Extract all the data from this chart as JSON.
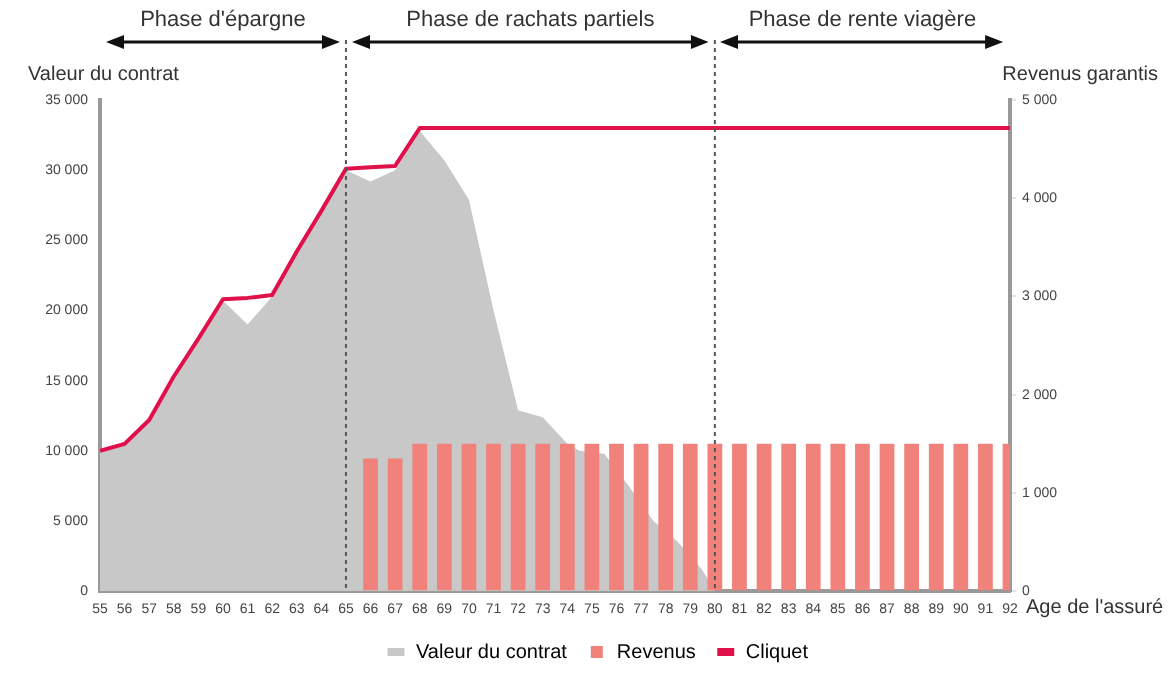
{
  "chart_data": {
    "type": "bar",
    "x": [
      55,
      56,
      57,
      58,
      59,
      60,
      61,
      62,
      63,
      64,
      65,
      66,
      67,
      68,
      69,
      70,
      71,
      72,
      73,
      74,
      75,
      76,
      77,
      78,
      79,
      80,
      81,
      82,
      83,
      84,
      85,
      86,
      87,
      88,
      89,
      90,
      91,
      92
    ],
    "series": [
      {
        "name": "Valeur du contrat",
        "type": "area",
        "color": "#c8c8c8",
        "x": [
          55,
          56,
          57,
          58,
          59,
          60,
          61,
          62,
          63,
          64,
          65,
          66,
          67,
          68,
          69,
          70,
          71,
          72,
          73,
          74,
          74.5,
          75.5,
          76.5,
          77.5,
          78.5,
          79.5,
          80
        ],
        "values": [
          10000,
          10500,
          12200,
          15000,
          18000,
          20700,
          19000,
          21000,
          24000,
          27000,
          30000,
          29200,
          30000,
          32800,
          30700,
          27900,
          20000,
          12900,
          12400,
          10500,
          10000,
          9800,
          7500,
          5000,
          3500,
          1500,
          0
        ]
      },
      {
        "name": "Revenus",
        "axis": "y2",
        "color": "#f0827b",
        "values": [
          null,
          null,
          null,
          null,
          null,
          null,
          null,
          null,
          null,
          null,
          null,
          1350,
          1350,
          1500,
          1500,
          1500,
          1500,
          1500,
          1500,
          1500,
          1500,
          1500,
          1500,
          1500,
          1500,
          1500,
          1500,
          1500,
          1500,
          1500,
          1500,
          1500,
          1500,
          1500,
          1500,
          1500,
          1500,
          1500
        ]
      },
      {
        "name": "Cliquet",
        "type": "line",
        "color": "#e0104a",
        "values": [
          10000,
          10500,
          12200,
          15300,
          18000,
          20800,
          20900,
          21100,
          24200,
          27100,
          30100,
          30200,
          30300,
          33000,
          33000,
          33000,
          33000,
          33000,
          33000,
          33000,
          33000,
          33000,
          33000,
          33000,
          33000,
          33000,
          33000,
          33000,
          33000,
          33000,
          33000,
          33000,
          33000,
          33000,
          33000,
          33000,
          33000,
          33000
        ]
      }
    ],
    "xlabel": "Age de l'assuré",
    "ylabel": "Valeur du contrat",
    "y2label": "Revenus garantis",
    "xlim": [
      55,
      92
    ],
    "xticks": [
      55,
      56,
      57,
      58,
      59,
      60,
      61,
      62,
      63,
      64,
      65,
      66,
      67,
      68,
      69,
      70,
      71,
      72,
      73,
      74,
      75,
      76,
      77,
      78,
      79,
      80,
      81,
      82,
      83,
      84,
      85,
      86,
      87,
      88,
      89,
      90,
      91,
      92
    ],
    "ylim": [
      0,
      35000
    ],
    "yticks": [
      0,
      {
        "value": 5000,
        "label": "5 000"
      },
      {
        "value": 10000,
        "label": "10 000"
      },
      {
        "value": 15000,
        "label": "15 000"
      },
      {
        "value": 20000,
        "label": "20 000"
      },
      {
        "value": 25000,
        "label": "25 000"
      },
      {
        "value": 30000,
        "label": "30 000"
      },
      {
        "value": 35000,
        "label": "35 000"
      }
    ],
    "y2lim": [
      0,
      5000
    ],
    "y2ticks": [
      0,
      {
        "value": 1000,
        "label": "1 000"
      },
      {
        "value": 2000,
        "label": "2 000"
      },
      {
        "value": 3000,
        "label": "3 000"
      },
      {
        "value": 4000,
        "label": "4 000"
      },
      {
        "value": 5000,
        "label": "5 000"
      }
    ],
    "ref_lines": [
      {
        "axis": "x",
        "value": 65,
        "color": "#555555",
        "line_style": "dotted"
      },
      {
        "axis": "x",
        "value": 80,
        "color": "#555555",
        "line_style": "dotted"
      }
    ],
    "annotations": [
      "Phase d'épargne",
      "Phase de rachats partiels",
      "Phase de rente viagère"
    ],
    "grid": false,
    "legend": "bottom",
    "marker": "none",
    "line_style": "solid"
  }
}
